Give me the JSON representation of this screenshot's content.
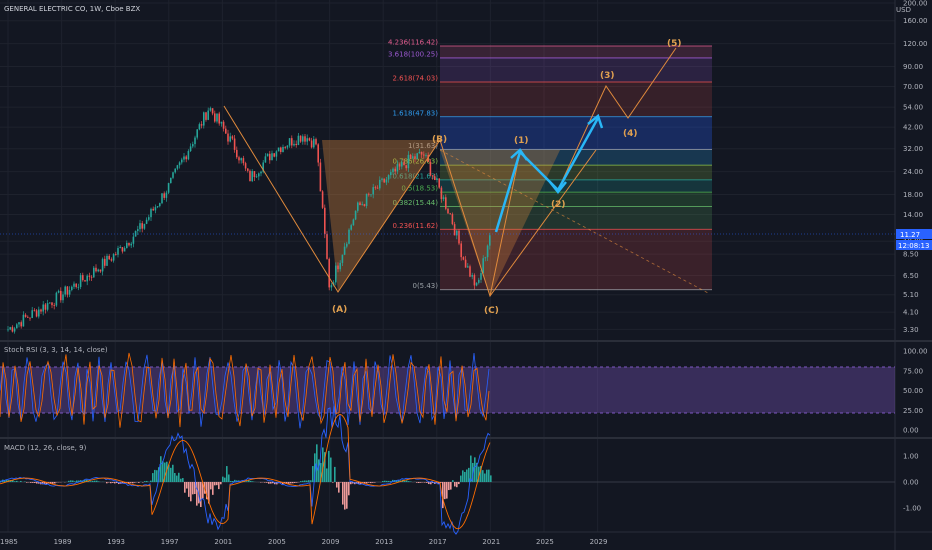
{
  "header": {
    "title": "GENERAL ELECTRIC CO, 1W, Cboe BZX",
    "currency": "USD"
  },
  "price_axis": [
    "200.00",
    "160.00",
    "120.00",
    "90.00",
    "70.00",
    "54.00",
    "42.00",
    "32.00",
    "24.00",
    "18.00",
    "14.00",
    "10.00",
    "8.50",
    "6.50",
    "5.10",
    "4.10",
    "3.30"
  ],
  "price_badge": {
    "price": "11.27",
    "countdown": "12:08:13"
  },
  "time_axis": [
    "1985",
    "1989",
    "1993",
    "1997",
    "2001",
    "2005",
    "2009",
    "2013",
    "2017",
    "2021",
    "2025",
    "2029"
  ],
  "fib_levels": [
    {
      "label": "4.236(116.42)",
      "color": "#e35d8f"
    },
    {
      "label": "3.618(100.25)",
      "color": "#9c59d1"
    },
    {
      "label": "2.618(74.03)",
      "color": "#f05252"
    },
    {
      "label": "1.618(47.83)",
      "color": "#2f9cf0"
    },
    {
      "label": "1(31.63)",
      "color": "#9aa0a6"
    },
    {
      "label": "0.786(26.03)",
      "color": "#8bc34a"
    },
    {
      "label": "0.618(21.63)",
      "color": "#26a69a"
    },
    {
      "label": "0.5(18.53)",
      "color": "#4caf50"
    },
    {
      "label": "0.382(15.44)",
      "color": "#66bb6a"
    },
    {
      "label": "0.236(11.62)",
      "color": "#f05252"
    },
    {
      "label": "0(5.43)",
      "color": "#9aa0a6"
    }
  ],
  "waves": {
    "A": "(A)",
    "B": "(B)",
    "C": "(C)",
    "w1": "(1)",
    "w2": "(2)",
    "w3": "(3)",
    "w4": "(4)",
    "w5": "(5)"
  },
  "stoch": {
    "title": "Stoch RSI (3, 3, 14, 14, close)",
    "axis": [
      "100.00",
      "75.00",
      "50.00",
      "25.00",
      "0.00"
    ]
  },
  "macd": {
    "title": "MACD (12, 26, close, 9)",
    "axis": [
      "1.00",
      "0.00",
      "-1.00"
    ]
  },
  "colors": {
    "bg": "#131722",
    "up": "#26a69a",
    "down": "#ef5350",
    "orange": "#e08a3c",
    "blue": "#29b6f6",
    "stochK": "#2962ff",
    "stochD": "#ff6d00",
    "stochBand": "#7e57c2"
  },
  "chart_data": {
    "type": "line",
    "title": "GENERAL ELECTRIC CO, 1W, Cboe BZX",
    "y_scale": "log",
    "ylim": [
      3.3,
      200
    ],
    "x": [
      1985,
      1987,
      1989,
      1991,
      1993,
      1995,
      1997,
      1999,
      2000,
      2002,
      2003,
      2005,
      2007,
      2008,
      2009,
      2011,
      2013,
      2015,
      2016,
      2018,
      2019,
      2020,
      2021
    ],
    "series": [
      {
        "name": "GE",
        "values": [
          3.3,
          4.1,
          5.1,
          6.5,
          8.5,
          12,
          20,
          38,
          54,
          32,
          22,
          32,
          38,
          34,
          5.5,
          15,
          21,
          28,
          30,
          14,
          8,
          5.5,
          11.27
        ]
      }
    ],
    "fibonacci": [
      5.43,
      11.62,
      15.44,
      18.53,
      21.63,
      26.03,
      31.63,
      47.83,
      74.03,
      100.25,
      116.42
    ],
    "indicators": [
      "Stoch RSI (3, 3, 14, 14, close)",
      "MACD (12, 26, close, 9)"
    ]
  }
}
